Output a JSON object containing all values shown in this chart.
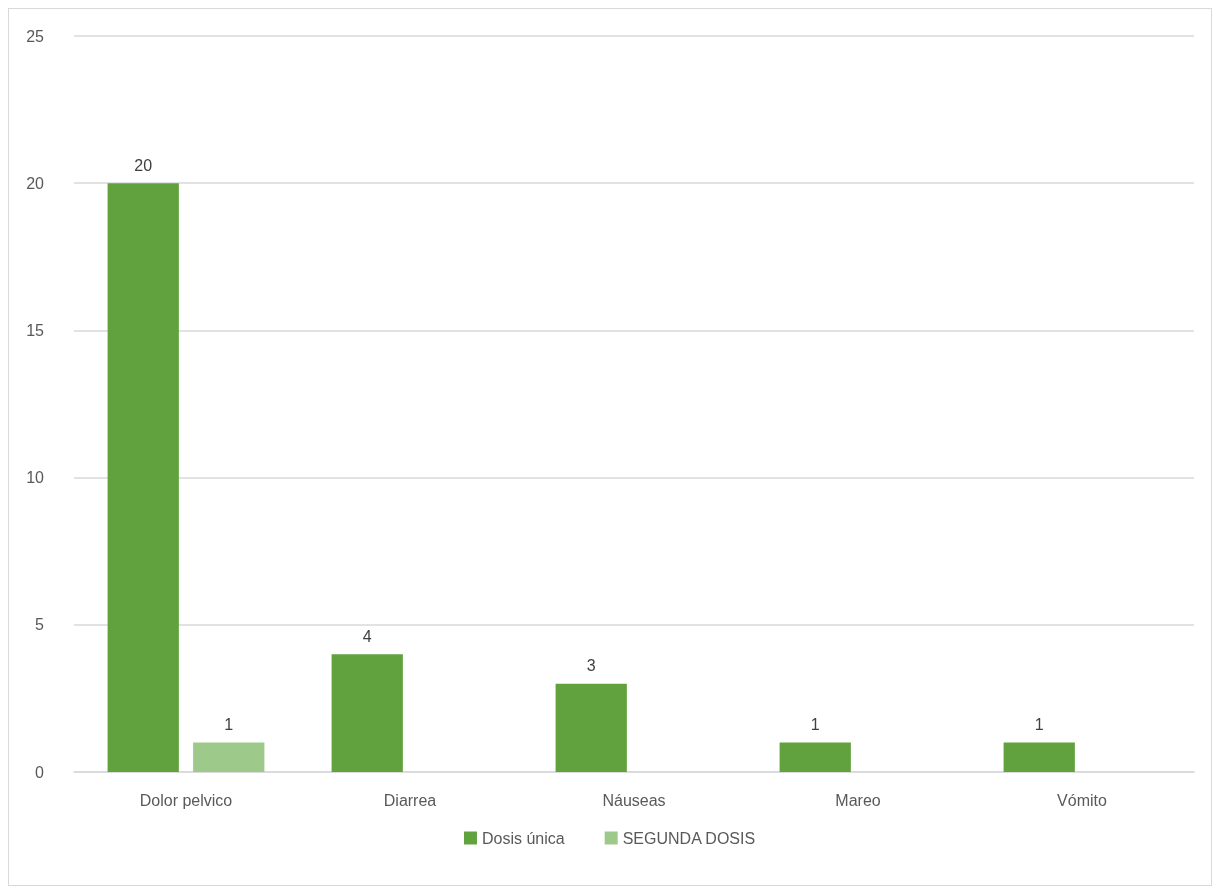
{
  "chart_data": {
    "type": "bar",
    "categories": [
      "Dolor pelvico",
      "Diarrea",
      "Náuseas",
      "Mareo",
      "Vómito"
    ],
    "series": [
      {
        "name": "Dosis única",
        "color": "#62a23e",
        "values": [
          20,
          4,
          3,
          1,
          1
        ]
      },
      {
        "name": "SEGUNDA DOSIS",
        "color": "#9dc98a",
        "values": [
          1,
          null,
          null,
          null,
          null
        ]
      }
    ],
    "ylim": [
      0,
      25
    ],
    "yticks": [
      0,
      5,
      10,
      15,
      20,
      25
    ],
    "grid": "y",
    "legend": "bottom",
    "data_labels": true
  }
}
